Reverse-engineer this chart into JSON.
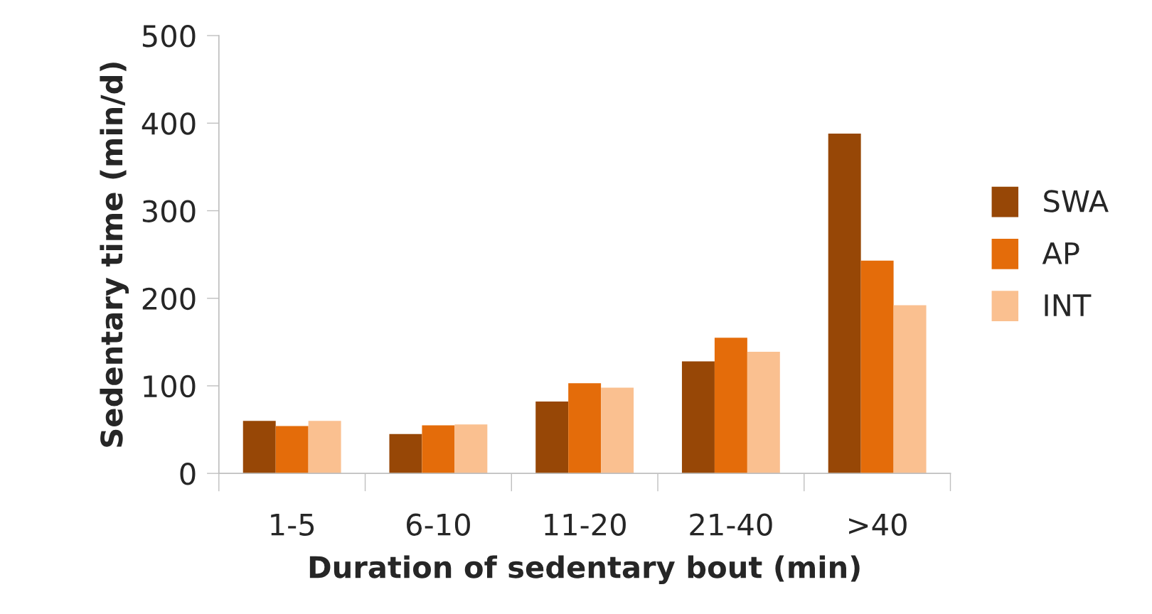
{
  "chart_data": {
    "type": "bar",
    "xlabel": "Duration of sedentary bout (min)",
    "ylabel": "Sedentary time (min/d)",
    "categories": [
      "1-5",
      "6-10",
      "11-20",
      "21-40",
      ">40"
    ],
    "series": [
      {
        "name": "SWA",
        "color": "#974706",
        "values": [
          60,
          45,
          82,
          128,
          388
        ]
      },
      {
        "name": "AP",
        "color": "#e46c0a",
        "values": [
          54,
          55,
          103,
          155,
          243
        ]
      },
      {
        "name": "INT",
        "color": "#fac090",
        "values": [
          60,
          56,
          98,
          139,
          192
        ]
      }
    ],
    "ylim": [
      0,
      500
    ],
    "yticks": [
      0,
      100,
      200,
      300,
      400,
      500
    ],
    "grid": false,
    "legend": "right"
  }
}
